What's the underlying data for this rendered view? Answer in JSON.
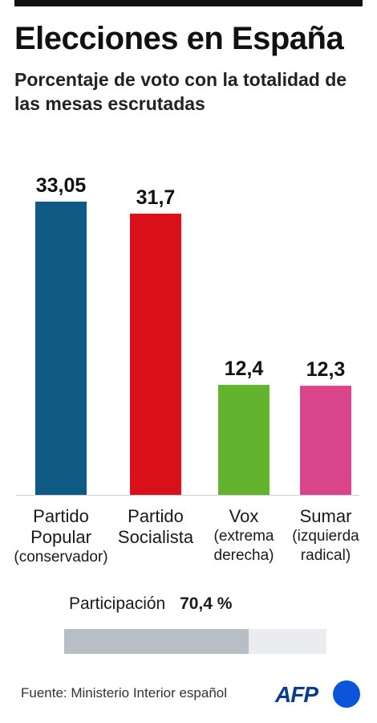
{
  "header": {
    "title": "Elecciones en España",
    "subtitle": "Porcentaje de voto con la totalidad de las mesas escrutadas"
  },
  "chart_data": {
    "type": "bar",
    "categories": [
      "Partido Popular",
      "Partido Socialista",
      "Vox",
      "Sumar"
    ],
    "category_labels": [
      {
        "name": [
          "Partido",
          "Popular"
        ],
        "desc": [
          "(conservador)"
        ]
      },
      {
        "name": [
          "Partido",
          "Socialista"
        ],
        "desc": []
      },
      {
        "name": [
          "Vox"
        ],
        "desc": [
          "(extrema",
          "derecha)"
        ]
      },
      {
        "name": [
          "Sumar"
        ],
        "desc": [
          "(izquierda",
          "radical)"
        ]
      }
    ],
    "values": [
      33.05,
      31.7,
      12.4,
      12.3
    ],
    "value_labels": [
      "33,05",
      "31,7",
      "12,4",
      "12,3"
    ],
    "colors": [
      "#0f5a85",
      "#d9101a",
      "#64b32e",
      "#d9448a"
    ],
    "ylim": [
      0,
      33.05
    ],
    "grid": false
  },
  "participation": {
    "label": "Participación",
    "value_text": "70,4 %",
    "value": 70.4,
    "fill_color": "#b8bec5",
    "track_color": "#eaecef"
  },
  "footer": {
    "source": "Fuente: Ministerio Interior español",
    "logo_text": "AFP",
    "logo_color": "#0a3c8c",
    "logo_dot_color": "#0a55d9"
  }
}
